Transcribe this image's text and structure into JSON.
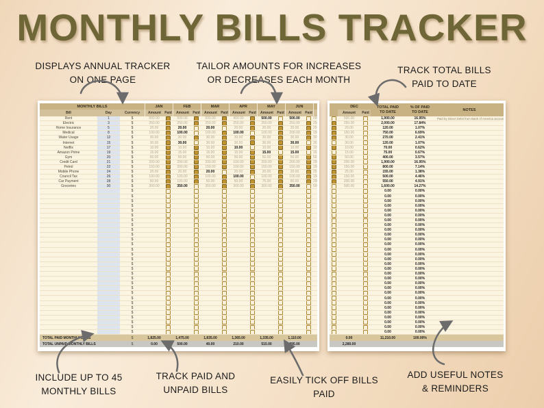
{
  "title": "MONTHLY BILLS TRACKER",
  "annotations": {
    "top": [
      [
        "DISPLAYS ANNUAL TRACKER",
        "ON ONE PAGE"
      ],
      [
        "TAILOR AMOUNTS FOR INCREASES",
        "OR DECREASES EACH MONTH"
      ],
      [
        "TRACK TOTAL BILLS",
        "PAID TO DATE"
      ]
    ],
    "bottom": [
      [
        "INCLUDE UP TO 45",
        "MONTHLY BILLS"
      ],
      [
        "TRACK PAID AND",
        "UNPAID BILLS"
      ],
      [
        "EASILY TICK OFF BILLS",
        "PAID"
      ],
      [
        "ADD USEFUL NOTES",
        "& REMINDERS"
      ]
    ]
  },
  "sheet": {
    "group_header": "MONTHLY BILLS",
    "column_labels": {
      "bill": "Bill",
      "day": "Day",
      "currency": "Currency",
      "amount": "Amount",
      "paid": "Paid"
    },
    "months": [
      "JAN",
      "FEB",
      "MAR",
      "APR",
      "MAY",
      "JUN"
    ],
    "dec_label": "DEC",
    "total_paid_label": [
      "TOTAL PAID",
      "TO DATE"
    ],
    "pct_label": [
      "% OF PAID",
      "TO DATE"
    ],
    "notes_label": "NOTES",
    "currency_symbol": "$",
    "empty_row_count": 30,
    "empty_row_total": "0.00",
    "empty_row_pct": "0.00%",
    "bills": [
      {
        "name": "Rent",
        "day": "1",
        "m": [
          [
            "500.00",
            true
          ],
          [
            "500.00",
            true
          ],
          [
            "500.00",
            true
          ],
          [
            "400.00",
            true
          ],
          [
            "500.00",
            false
          ],
          [
            "500.00",
            false
          ]
        ],
        "dec": "500.00",
        "total": "1,900.00",
        "pct": "16.95%",
        "note": "Paid by Direct Debit from Bank of America account"
      },
      {
        "name": "Electric",
        "day": "3",
        "m": [
          [
            "250.00",
            true
          ],
          [
            "250.00",
            true
          ],
          [
            "250.00",
            true
          ],
          [
            "250.00",
            true
          ],
          [
            "250.00",
            true
          ],
          [
            "250.00",
            true
          ]
        ],
        "dec": "250.00",
        "total": "2,000.00",
        "pct": "17.84%",
        "note": ""
      },
      {
        "name": "Home Insurance",
        "day": "5",
        "m": [
          [
            "20.00",
            true
          ],
          [
            "20.00",
            false
          ],
          [
            "20.00",
            false
          ],
          [
            "20.00",
            true
          ],
          [
            "20.00",
            true
          ],
          [
            "20.00",
            true
          ]
        ],
        "dec": "20.00",
        "total": "120.00",
        "pct": "1.07%",
        "note": ""
      },
      {
        "name": "Medical",
        "day": "8",
        "m": [
          [
            "100.00",
            true
          ],
          [
            "100.00",
            false
          ],
          [
            "100.00",
            true
          ],
          [
            "100.00",
            false
          ],
          [
            "100.00",
            true
          ],
          [
            "200.00",
            true
          ]
        ],
        "dec": "150.00",
        "total": "750.00",
        "pct": "6.69%",
        "note": ""
      },
      {
        "name": "Water Usage",
        "day": "12",
        "m": [
          [
            "30.00",
            true
          ],
          [
            "30.00",
            true
          ],
          [
            "30.00",
            true
          ],
          [
            "30.00",
            true
          ],
          [
            "30.00",
            true
          ],
          [
            "30.00",
            true
          ]
        ],
        "dec": "30.00",
        "total": "270.00",
        "pct": "2.41%",
        "note": ""
      },
      {
        "name": "Internet",
        "day": "15",
        "m": [
          [
            "30.00",
            true
          ],
          [
            "30.00",
            false
          ],
          [
            "30.00",
            true
          ],
          [
            "30.00",
            true
          ],
          [
            "30.00",
            true
          ],
          [
            "30.00",
            false
          ]
        ],
        "dec": "30.00",
        "total": "120.00",
        "pct": "1.07%",
        "note": ""
      },
      {
        "name": "Netflix",
        "day": "17",
        "m": [
          [
            "10.00",
            true
          ],
          [
            "10.00",
            true
          ],
          [
            "10.00",
            true
          ],
          [
            "10.00",
            false
          ],
          [
            "10.00",
            true
          ],
          [
            "10.00",
            true
          ]
        ],
        "dec": "10.00",
        "total": "70.00",
        "pct": "0.62%",
        "note": ""
      },
      {
        "name": "Amazon Prime",
        "day": "19",
        "m": [
          [
            "15.00",
            true
          ],
          [
            "15.00",
            true
          ],
          [
            "15.00",
            true
          ],
          [
            "15.00",
            true
          ],
          [
            "15.00",
            false
          ],
          [
            "15.00",
            false
          ]
        ],
        "dec": "15.00",
        "total": "75.00",
        "pct": "0.67%",
        "note": ""
      },
      {
        "name": "Gym",
        "day": "20",
        "m": [
          [
            "50.00",
            true
          ],
          [
            "50.00",
            true
          ],
          [
            "50.00",
            true
          ],
          [
            "50.00",
            true
          ],
          [
            "50.00",
            true
          ],
          [
            "50.00",
            true
          ]
        ],
        "dec": "50.00",
        "total": "400.00",
        "pct": "3.57%",
        "note": ""
      },
      {
        "name": "Credit Card",
        "day": "21",
        "m": [
          [
            "200.00",
            true
          ],
          [
            "200.00",
            true
          ],
          [
            "200.00",
            true
          ],
          [
            "100.00",
            true
          ],
          [
            "200.00",
            true
          ],
          [
            "200.00",
            true
          ]
        ],
        "dec": "200.00",
        "total": "1,900.00",
        "pct": "16.95%",
        "note": ""
      },
      {
        "name": "Petrol",
        "day": "22",
        "m": [
          [
            "150.00",
            true
          ],
          [
            "200.00",
            true
          ],
          [
            "150.00",
            true
          ],
          [
            "100.00",
            true
          ],
          [
            "150.00",
            true
          ],
          [
            "150.00",
            true
          ]
        ],
        "dec": "150.00",
        "total": "800.00",
        "pct": "7.14%",
        "note": ""
      },
      {
        "name": "Mobile Phone",
        "day": "24",
        "m": [
          [
            "20.00",
            true
          ],
          [
            "20.00",
            true
          ],
          [
            "20.00",
            false
          ],
          [
            "20.00",
            true
          ],
          [
            "20.00",
            true
          ],
          [
            "20.00",
            true
          ]
        ],
        "dec": "25.00",
        "total": "155.00",
        "pct": "1.38%",
        "note": ""
      },
      {
        "name": "Council Tax",
        "day": "26",
        "m": [
          [
            "100.00",
            true
          ],
          [
            "100.00",
            true
          ],
          [
            "100.00",
            true
          ],
          [
            "100.00",
            false
          ],
          [
            "100.00",
            true
          ],
          [
            "100.00",
            true
          ]
        ],
        "dec": "150.00",
        "total": "500.00",
        "pct": "4.46%",
        "note": ""
      },
      {
        "name": "Car Payment",
        "day": "28",
        "m": [
          [
            "50.00",
            true
          ],
          [
            "100.00",
            true
          ],
          [
            "50.00",
            true
          ],
          [
            "50.00",
            true
          ],
          [
            "75.00",
            true
          ],
          [
            "80.00",
            true
          ]
        ],
        "dec": "200.00",
        "total": "550.00",
        "pct": "4.91%",
        "note": ""
      },
      {
        "name": "Groceries",
        "day": "30",
        "m": [
          [
            "300.00",
            true
          ],
          [
            "350.00",
            false
          ],
          [
            "350.00",
            true
          ],
          [
            "300.00",
            true
          ],
          [
            "300.00",
            true
          ],
          [
            "350.00",
            false
          ]
        ],
        "dec": "500.00",
        "total": "1,600.00",
        "pct": "14.27%",
        "note": ""
      }
    ],
    "totals": {
      "paid_label": "TOTAL PAID MONTHLY BILLS",
      "unpaid_label": "TOTAL UNPAID MONTHLY BILLS",
      "paid": [
        "1,825.00",
        "1,475.00",
        "1,835.00",
        "1,365.00",
        "1,335.00",
        "1,110.00"
      ],
      "unpaid": [
        "0.00",
        "500.00",
        "40.00",
        "210.00",
        "515.00",
        "895.00"
      ],
      "dec_paid": "0.00",
      "dec_unpaid": "2,280.00",
      "grand_total": "11,210.00",
      "grand_pct": "100.00%"
    }
  },
  "colors": {
    "title": "#6e6636",
    "page_bg": "#f3ddc2",
    "header_band": "#c8b183",
    "subheader_band": "#d3c19b",
    "sheet_bg": "#fbf4e1",
    "checkbox_gold": "#c09431",
    "day_cell": "#dde4ee",
    "paid_amount_text": "#b3a88f",
    "unpaid_amount_text": "#141414",
    "total_paid_row": "#d8c69c",
    "total_unpaid_row": "#c9c7c2",
    "arrow": "#6c6c6c"
  }
}
